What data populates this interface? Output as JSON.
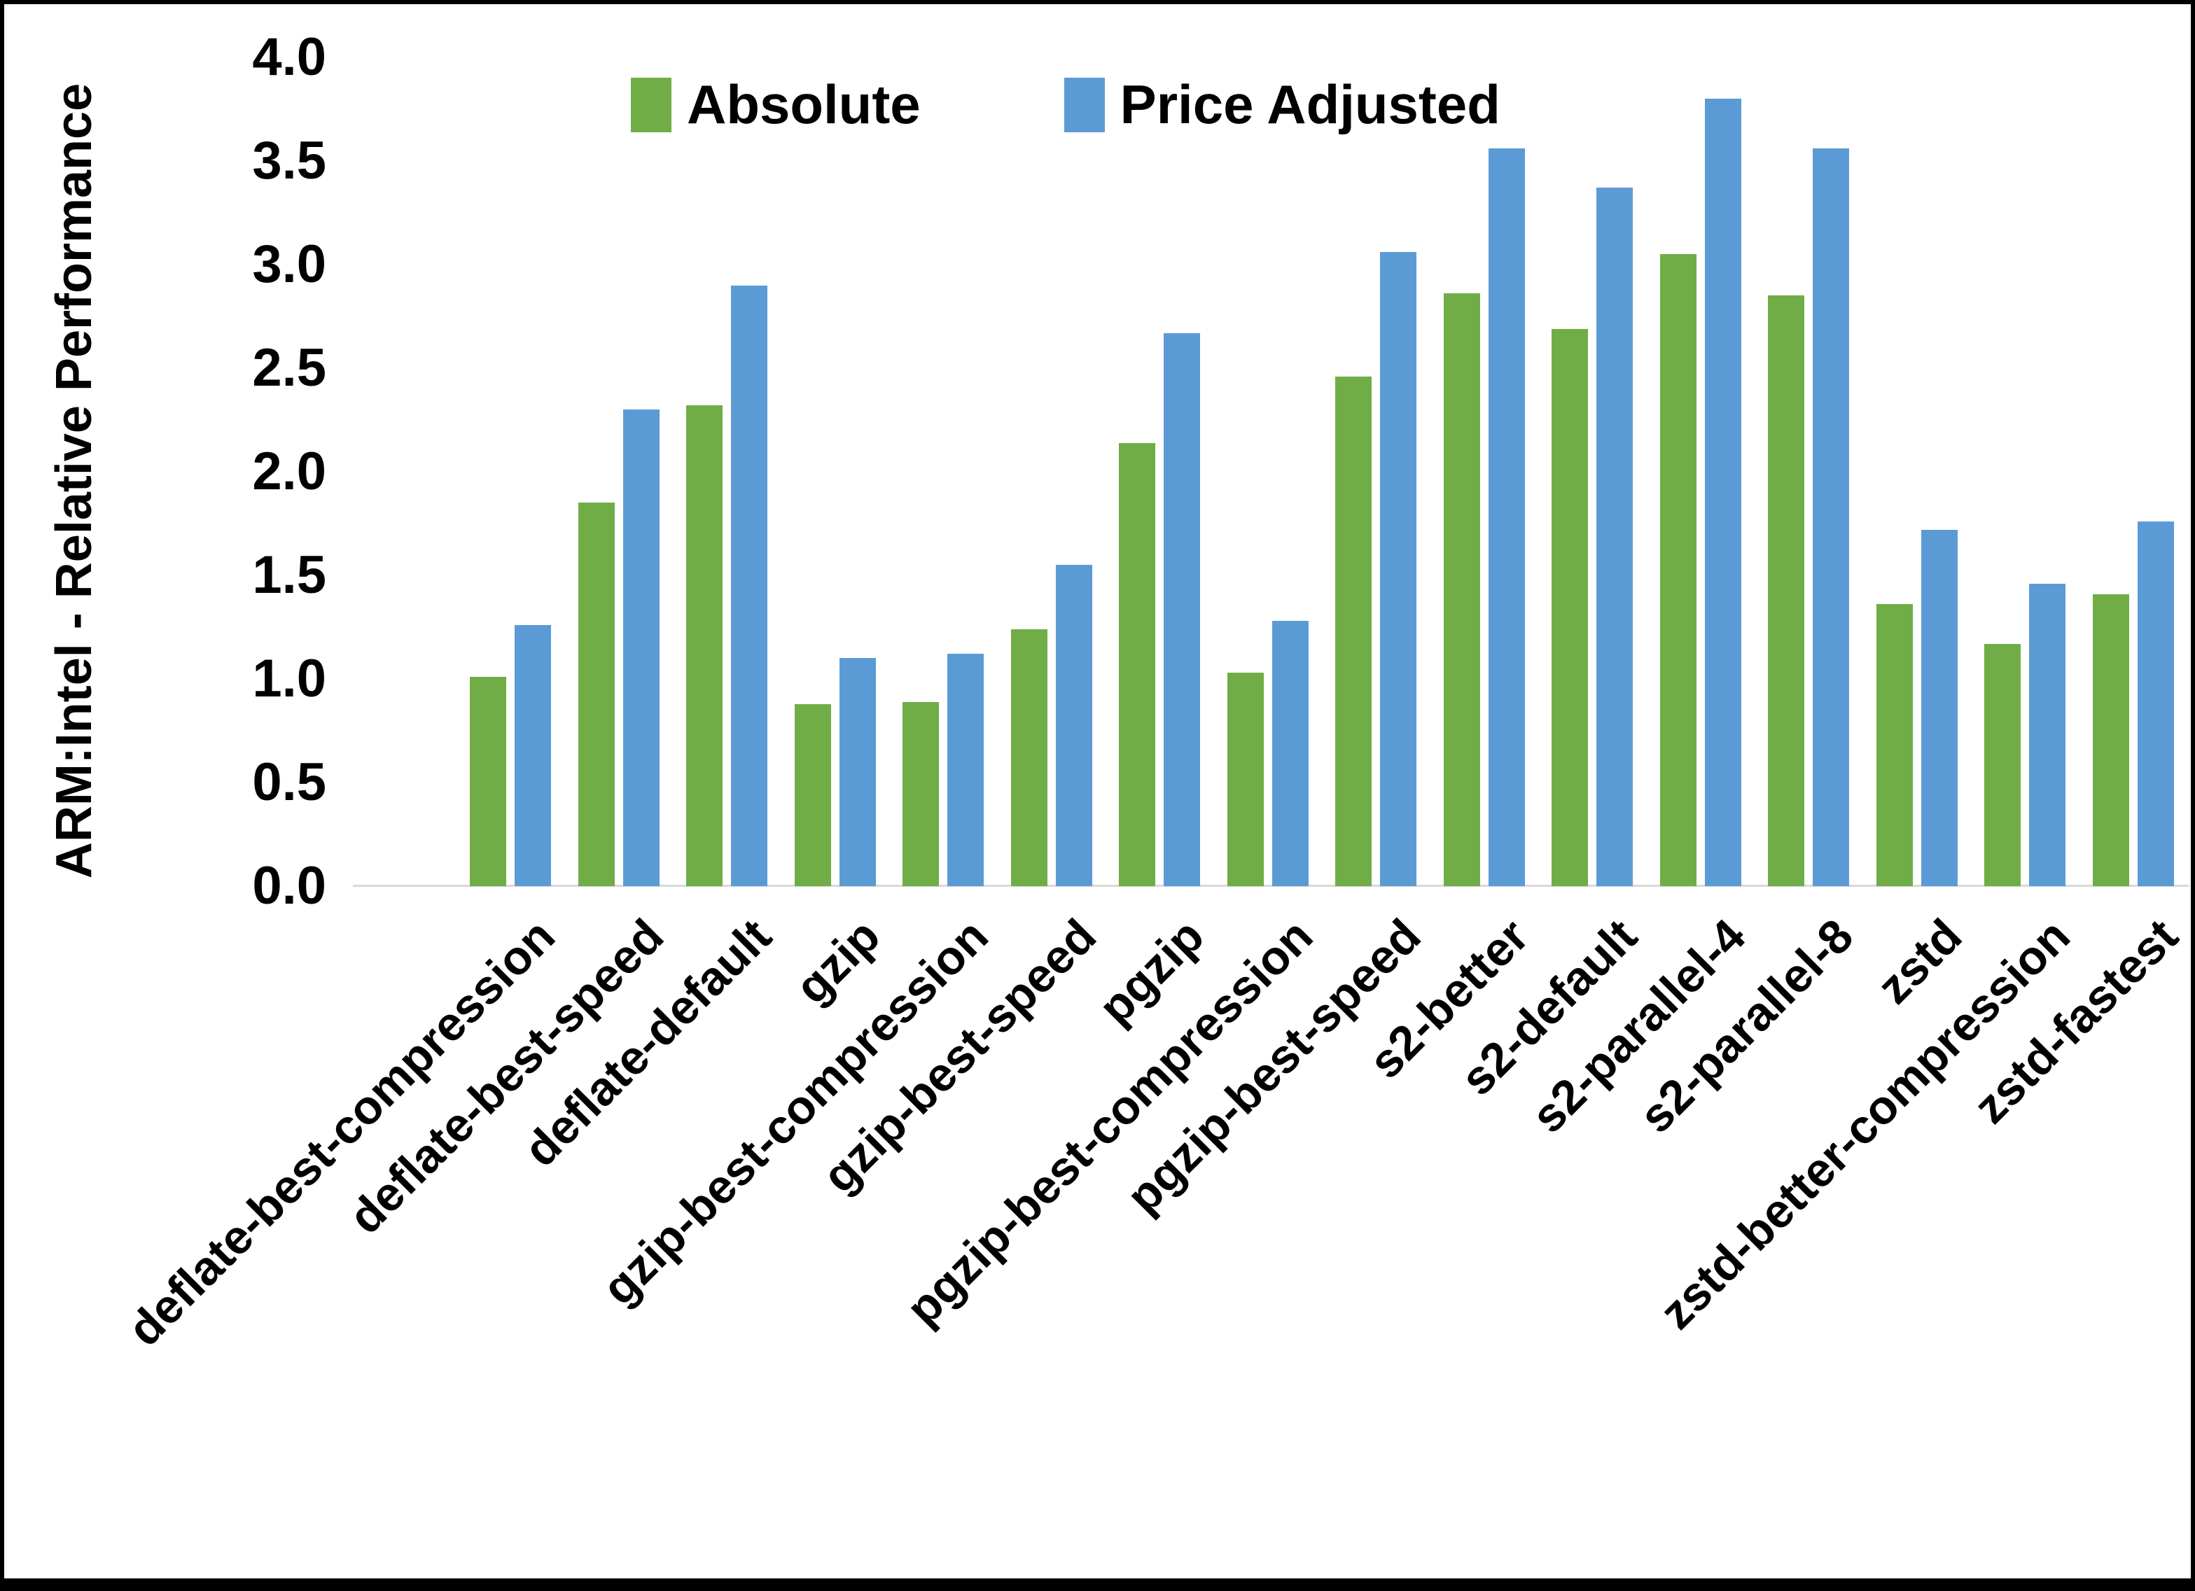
{
  "chart_data": {
    "type": "bar",
    "title": "",
    "ylabel": "ARM:Intel - Relative Performance",
    "xlabel": "",
    "ylim": [
      0.0,
      4.0
    ],
    "ytick_step": 0.5,
    "yticks": [
      "4.0",
      "3.5",
      "3.0",
      "2.5",
      "2.0",
      "1.5",
      "1.0",
      "0.5",
      "0.0"
    ],
    "grid": false,
    "legend_position": "top-center",
    "categories": [
      "deflate-best-compression",
      "deflate-best-speed",
      "deflate-default",
      "gzip",
      "gzip-best-compression",
      "gzip-best-speed",
      "pgzip",
      "pgzip-best-compression",
      "pgzip-best-speed",
      "s2-better",
      "s2-default",
      "s2-parallel-4",
      "s2-parallel-8",
      "zstd",
      "zstd-better-compression",
      "zstd-fastest"
    ],
    "series": [
      {
        "name": "Absolute",
        "color": "#70AD47",
        "values": [
          1.01,
          1.85,
          2.32,
          0.88,
          0.89,
          1.24,
          2.14,
          1.03,
          2.46,
          2.86,
          2.69,
          3.05,
          2.85,
          1.36,
          1.17,
          1.41
        ]
      },
      {
        "name": "Price Adjusted",
        "color": "#5B9BD5",
        "values": [
          1.26,
          2.3,
          2.9,
          1.1,
          1.12,
          1.55,
          2.67,
          1.28,
          3.06,
          3.56,
          3.37,
          3.8,
          3.56,
          1.72,
          1.46,
          1.76
        ]
      }
    ],
    "axis_line_color": "#d9d9d9",
    "text_color": "#000000"
  }
}
